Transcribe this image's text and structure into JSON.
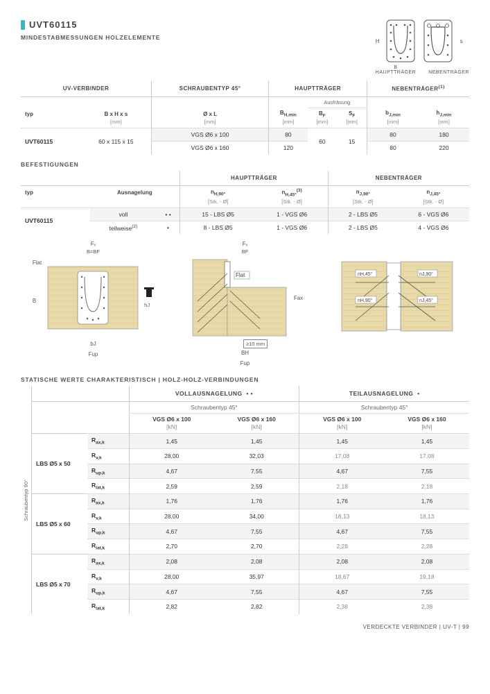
{
  "product": {
    "title": "UVT60115",
    "subtitle": "MINDESTABMESSUNGEN HOLZELEMENTE"
  },
  "bracket_labels": {
    "h": "H",
    "b": "B",
    "s": "s",
    "main": "HAUPTTRÄGER",
    "secondary": "NEBENTRÄGER"
  },
  "colors": {
    "accent": "#3fb5c3",
    "wood_fill": "#e8d9a8",
    "wood_stroke": "#c9b679",
    "grey_stripe": "#f3f4f5",
    "border": "#cccccc",
    "text": "#444444"
  },
  "table1": {
    "headers": {
      "uv": "UV-VERBINDER",
      "screw": "SCHRAUBENTYP 45°",
      "main": "HAUPTTRÄGER",
      "secondary": "NEBENTRÄGER",
      "secondary_sup": "(1)",
      "ausfrasung": "Ausfräsung",
      "typ": "typ",
      "bhs": "B x H x s",
      "oxl": "Ø x L",
      "bhmin": "B",
      "bhmin_sub": "H,min",
      "bf": "B",
      "bf_sub": "F",
      "sf": "S",
      "sf_sub": "F",
      "bjmin": "b",
      "bjmin_sub": "J,min",
      "hjmin": "h",
      "hjmin_sub": "J,min",
      "mm": "[mm]"
    },
    "rows": [
      {
        "typ": "UVT60115",
        "bhs": "60 x 115 x 15",
        "screw": "VGS Ø6 x 100",
        "bhmin": "80",
        "bf": "60",
        "sf": "15",
        "bjmin": "80",
        "hjmin": "180"
      },
      {
        "typ": "",
        "bhs": "",
        "screw": "VGS Ø6 x 160",
        "bhmin": "120",
        "bf": "",
        "sf": "",
        "bjmin": "80",
        "hjmin": "220"
      }
    ]
  },
  "befest_label": "BEFESTIGUNGEN",
  "table2": {
    "headers": {
      "main": "HAUPTTRÄGER",
      "secondary": "NEBENTRÄGER",
      "typ": "typ",
      "ausn": "Ausnagelung",
      "nh90": "n",
      "nh90_sub": "H,90°",
      "nh45": "n",
      "nh45_sub": "H,45°",
      "nh45_sup": "(3)",
      "nj90": "n",
      "nj90_sub": "J,90°",
      "nj45": "n",
      "nj45_sub": "J,45°",
      "stk": "[Stk. - Ø]"
    },
    "rows": [
      {
        "typ": "UVT60115",
        "ausn": "voll",
        "dots": "• •",
        "nh90": "15 - LBS Ø5",
        "nh45": "1 - VGS Ø6",
        "nj90": "2 - LBS Ø5",
        "nj45": "6 - VGS Ø6"
      },
      {
        "typ": "",
        "ausn": "teilweise",
        "ausn_sup": "(2)",
        "dots": "•",
        "nh90": "8 - LBS Ø5",
        "nh45": "1 - VGS Ø6",
        "nj90": "2 - LBS Ø5",
        "nj45": "4 - VGS Ø6"
      }
    ]
  },
  "diagrams": {
    "fv": "Fᵥ",
    "fup": "Fup",
    "flat": "Flat",
    "fax": "Fax",
    "b_bf": "B=BF",
    "bj": "bJ",
    "bh": "BH",
    "bf": "BF",
    "hj_dim": "hJ",
    "b_dim": "B",
    "gap": "≥10 mm",
    "nh45": "nH,45°",
    "nh90": "nH,90°",
    "nj90": "nJ,90°",
    "nj45": "nJ,45°"
  },
  "stat_label": "STATISCHE WERTE CHARAKTERISTISCH | HOLZ-HOLZ-VERBINDUNGEN",
  "table3": {
    "headers": {
      "voll": "VOLLAUSNAGELUNG",
      "voll_dots": "• •",
      "teil": "TEILAUSNAGELUNG",
      "teil_dot": "•",
      "s45": "Schraubentyp 45°",
      "vgs100": "VGS Ø6 x 100",
      "vgs160": "VGS Ø6 x 160",
      "kn": "[kN]",
      "side": "Schraubentyp 90°"
    },
    "groups": [
      {
        "label": "LBS Ø5 x 50",
        "rows": [
          {
            "name": "Rax,k",
            "v": [
              "1,45",
              "1,45",
              "1,45",
              "1,45"
            ]
          },
          {
            "name": "Rv,k",
            "v": [
              "28,00",
              "32,03",
              "17,08",
              "17,08"
            ]
          },
          {
            "name": "Rup,k",
            "v": [
              "4,67",
              "7,55",
              "4,67",
              "7,55"
            ]
          },
          {
            "name": "Rlat,k",
            "v": [
              "2,59",
              "2,59",
              "2,18",
              "2,18"
            ]
          }
        ]
      },
      {
        "label": "LBS Ø5 x 60",
        "rows": [
          {
            "name": "Rax,k",
            "v": [
              "1,76",
              "1,76",
              "1,76",
              "1,76"
            ]
          },
          {
            "name": "Rv,k",
            "v": [
              "28,00",
              "34,00",
              "18,13",
              "18,13"
            ]
          },
          {
            "name": "Rup,k",
            "v": [
              "4,67",
              "7,55",
              "4,67",
              "7,55"
            ]
          },
          {
            "name": "Rlat,k",
            "v": [
              "2,70",
              "2,70",
              "2,28",
              "2,28"
            ]
          }
        ]
      },
      {
        "label": "LBS Ø5 x 70",
        "rows": [
          {
            "name": "Rax,k",
            "v": [
              "2,08",
              "2,08",
              "2,08",
              "2,08"
            ]
          },
          {
            "name": "Rv,k",
            "v": [
              "28,00",
              "35,97",
              "18,67",
              "19,18"
            ]
          },
          {
            "name": "Rup,k",
            "v": [
              "4,67",
              "7,55",
              "4,67",
              "7,55"
            ]
          },
          {
            "name": "Rlat,k",
            "v": [
              "2,82",
              "2,82",
              "2,38",
              "2,38"
            ]
          }
        ]
      }
    ]
  },
  "footer": {
    "text": "VERDECKTE VERBINDER  |  UV-T  |  99"
  }
}
